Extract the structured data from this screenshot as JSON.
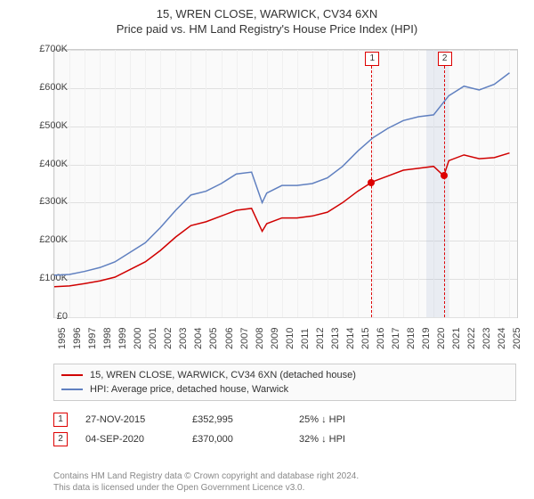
{
  "title": "15, WREN CLOSE, WARWICK, CV34 6XN",
  "subtitle": "Price paid vs. HM Land Registry's House Price Index (HPI)",
  "chart": {
    "type": "line",
    "ylim": [
      0,
      700000
    ],
    "ytick_step": 100000,
    "ytick_labels": [
      "£0",
      "£100K",
      "£200K",
      "£300K",
      "£400K",
      "£500K",
      "£600K",
      "£700K"
    ],
    "xlim": [
      1995,
      2025.5
    ],
    "xtick_labels": [
      "1995",
      "1996",
      "1997",
      "1998",
      "1999",
      "2000",
      "2001",
      "2002",
      "2003",
      "2004",
      "2005",
      "2006",
      "2007",
      "2008",
      "2009",
      "2010",
      "2011",
      "2012",
      "2013",
      "2014",
      "2015",
      "2016",
      "2017",
      "2018",
      "2019",
      "2020",
      "2021",
      "2022",
      "2023",
      "2024",
      "2025"
    ],
    "background_color": "#fafafa",
    "grid_color": "#e0e0e0",
    "series": [
      {
        "name": "15, WREN CLOSE, WARWICK, CV34 6XN (detached house)",
        "color": "#d00000",
        "line_width": 1.5,
        "data": [
          [
            1995,
            80000
          ],
          [
            1996,
            82000
          ],
          [
            1997,
            88000
          ],
          [
            1998,
            95000
          ],
          [
            1999,
            105000
          ],
          [
            2000,
            125000
          ],
          [
            2001,
            145000
          ],
          [
            2002,
            175000
          ],
          [
            2003,
            210000
          ],
          [
            2004,
            240000
          ],
          [
            2005,
            250000
          ],
          [
            2006,
            265000
          ],
          [
            2007,
            280000
          ],
          [
            2008,
            285000
          ],
          [
            2008.7,
            225000
          ],
          [
            2009,
            245000
          ],
          [
            2010,
            260000
          ],
          [
            2011,
            260000
          ],
          [
            2012,
            265000
          ],
          [
            2013,
            275000
          ],
          [
            2014,
            300000
          ],
          [
            2015,
            330000
          ],
          [
            2015.9,
            352995
          ],
          [
            2016,
            355000
          ],
          [
            2017,
            370000
          ],
          [
            2018,
            385000
          ],
          [
            2019,
            390000
          ],
          [
            2020,
            395000
          ],
          [
            2020.67,
            370000
          ],
          [
            2021,
            410000
          ],
          [
            2022,
            425000
          ],
          [
            2023,
            415000
          ],
          [
            2024,
            418000
          ],
          [
            2025,
            430000
          ]
        ]
      },
      {
        "name": "HPI: Average price, detached house, Warwick",
        "color": "#6080c0",
        "line_width": 1.5,
        "data": [
          [
            1995,
            110000
          ],
          [
            1996,
            112000
          ],
          [
            1997,
            120000
          ],
          [
            1998,
            130000
          ],
          [
            1999,
            145000
          ],
          [
            2000,
            170000
          ],
          [
            2001,
            195000
          ],
          [
            2002,
            235000
          ],
          [
            2003,
            280000
          ],
          [
            2004,
            320000
          ],
          [
            2005,
            330000
          ],
          [
            2006,
            350000
          ],
          [
            2007,
            375000
          ],
          [
            2008,
            380000
          ],
          [
            2008.7,
            300000
          ],
          [
            2009,
            325000
          ],
          [
            2010,
            345000
          ],
          [
            2011,
            345000
          ],
          [
            2012,
            350000
          ],
          [
            2013,
            365000
          ],
          [
            2014,
            395000
          ],
          [
            2015,
            435000
          ],
          [
            2016,
            470000
          ],
          [
            2017,
            495000
          ],
          [
            2018,
            515000
          ],
          [
            2019,
            525000
          ],
          [
            2020,
            530000
          ],
          [
            2021,
            580000
          ],
          [
            2022,
            605000
          ],
          [
            2023,
            595000
          ],
          [
            2024,
            610000
          ],
          [
            2025,
            640000
          ]
        ]
      }
    ],
    "sale_markers": [
      {
        "index": "1",
        "x": 2015.9,
        "y": 352995
      },
      {
        "index": "2",
        "x": 2020.67,
        "y": 370000
      }
    ],
    "shaded_region": {
      "x_start": 2019.5,
      "x_end": 2021
    }
  },
  "sales_table": [
    {
      "num": "1",
      "date": "27-NOV-2015",
      "price": "£352,995",
      "pct": "25% ↓ HPI"
    },
    {
      "num": "2",
      "date": "04-SEP-2020",
      "price": "£370,000",
      "pct": "32% ↓ HPI"
    }
  ],
  "footer": {
    "line1": "Contains HM Land Registry data © Crown copyright and database right 2024.",
    "line2": "This data is licensed under the Open Government Licence v3.0."
  }
}
